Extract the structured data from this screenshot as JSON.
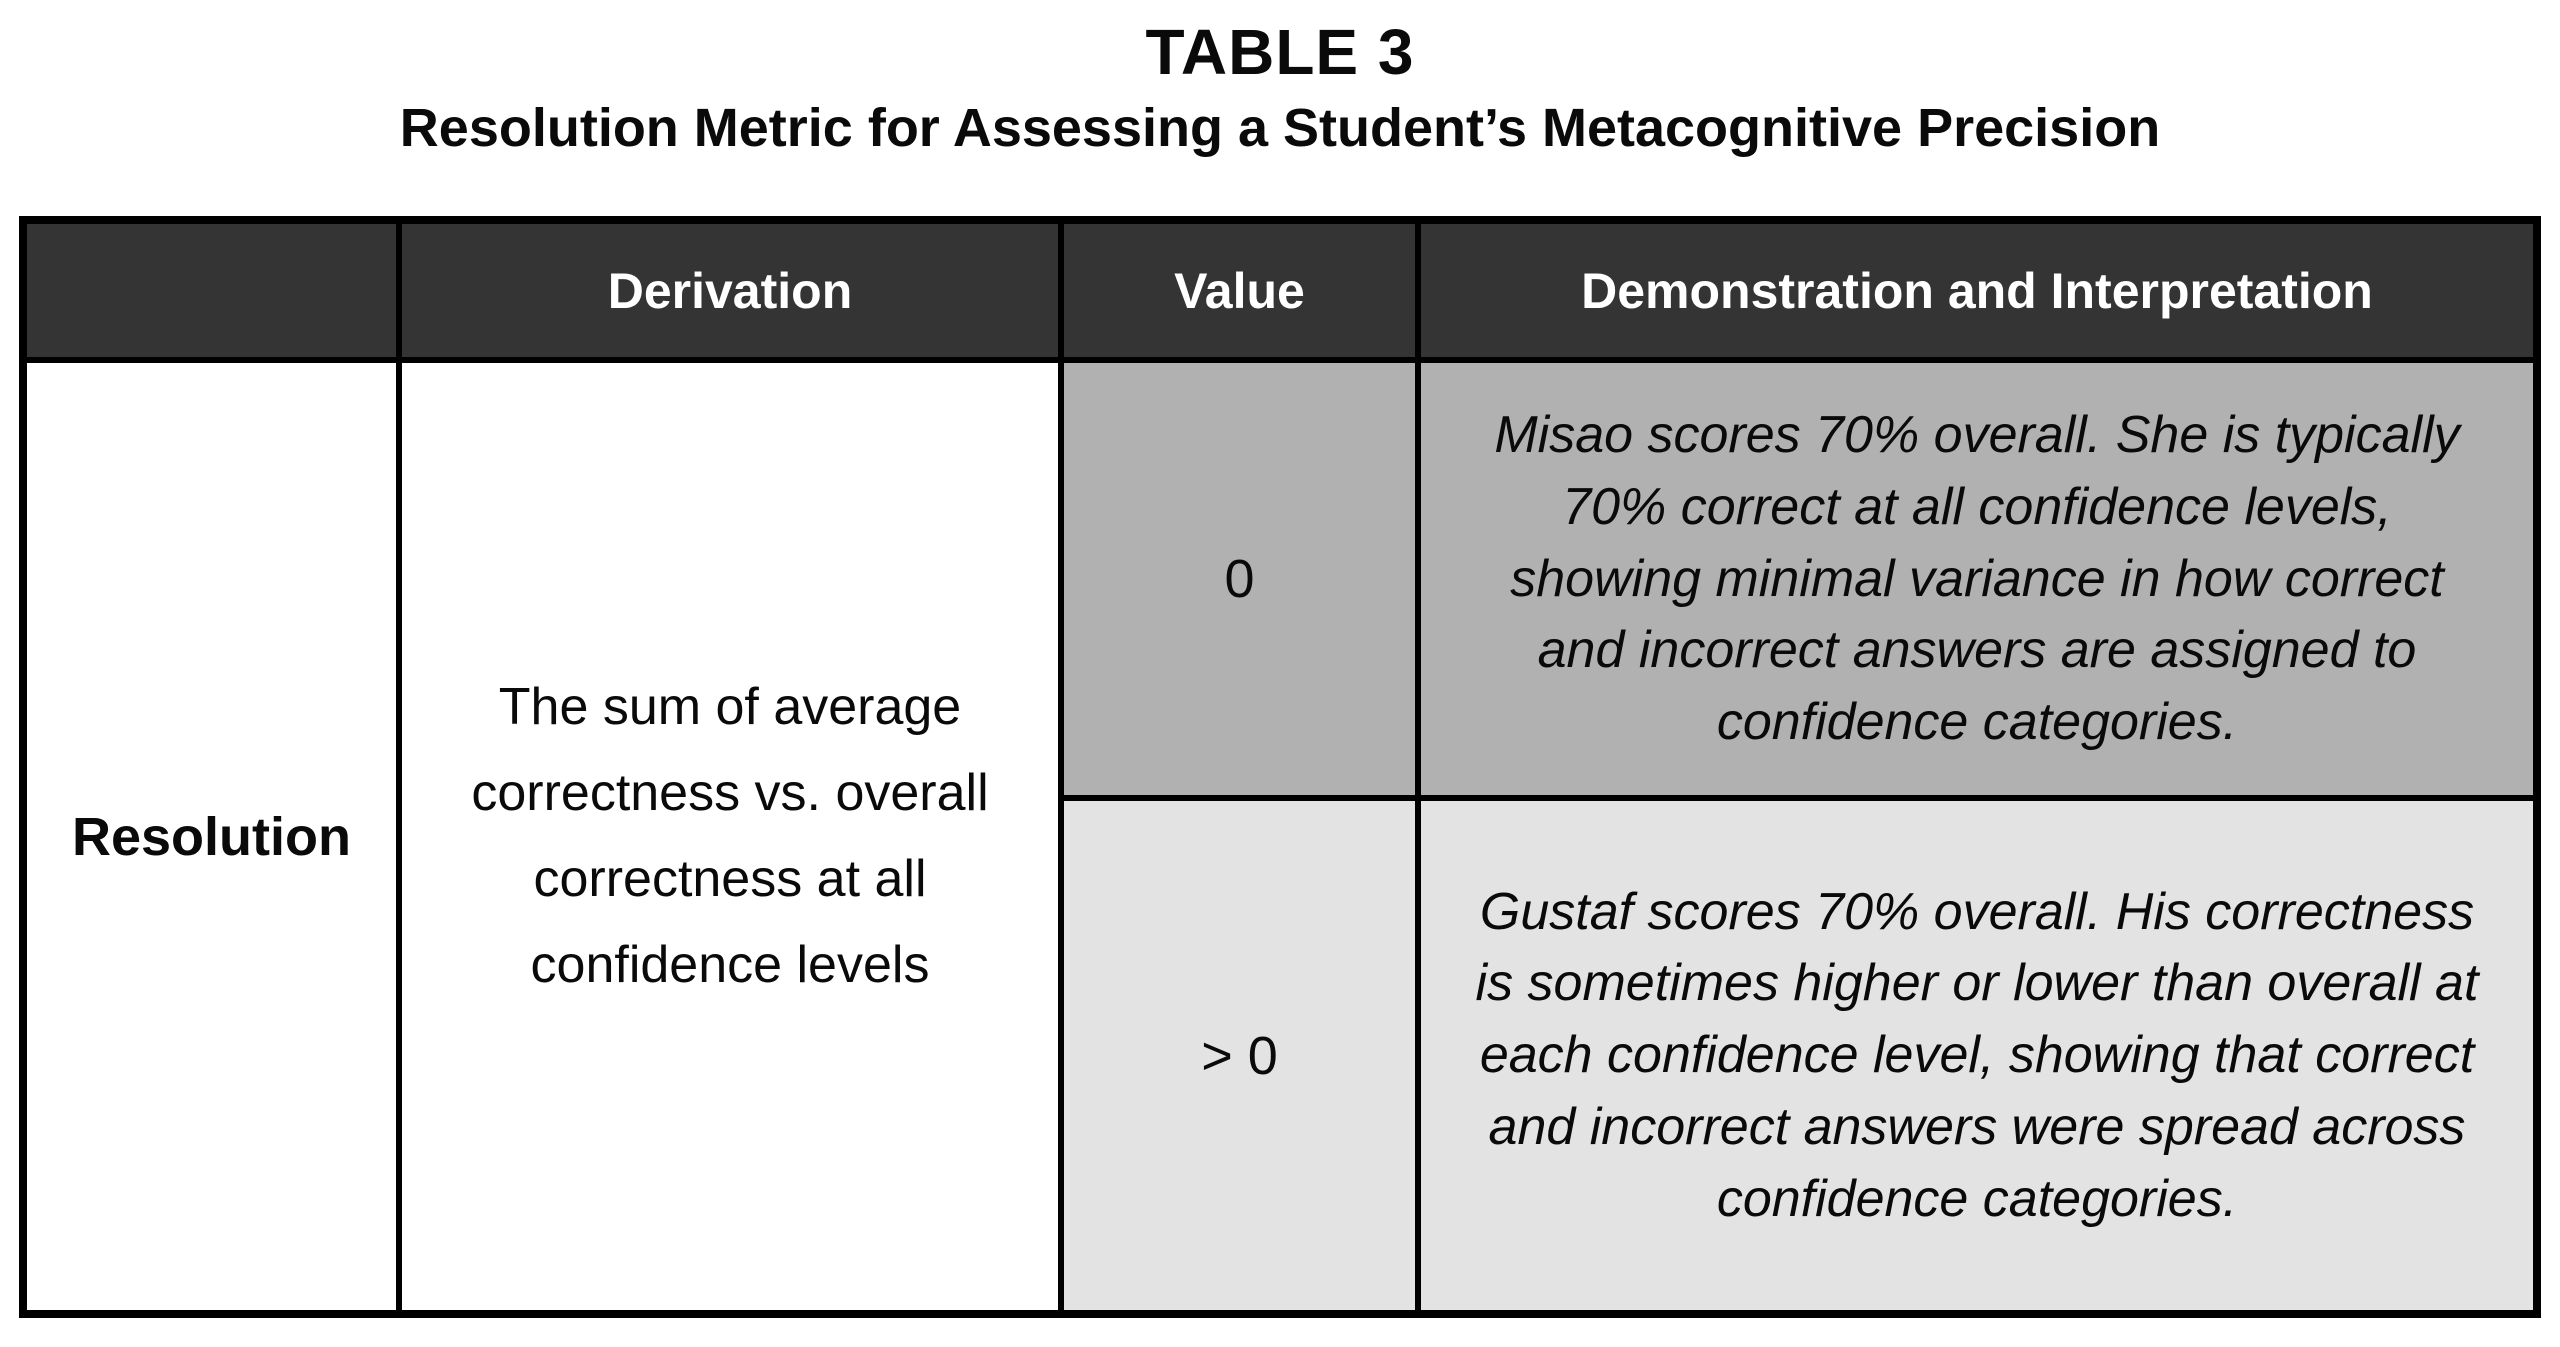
{
  "title": "TABLE 3",
  "subtitle": "Resolution Metric for Assessing a Student’s Metacognitive Precision",
  "colors": {
    "page_bg": "#ffffff",
    "text": "#0a0a0a",
    "border": "#000000",
    "header_bg": "#343434",
    "header_text": "#ffffff",
    "row_zero_bg": "#b1b1b1",
    "row_positive_bg": "#e3e3e3"
  },
  "table": {
    "headers": [
      "",
      "Derivation",
      "Value",
      "Demonstration and Interpretation"
    ],
    "metric": {
      "name": "Resolution",
      "derivation": "The sum of average correctness vs. overall correctness at all confidence levels",
      "rows": [
        {
          "value": "0",
          "interpretation": "Misao scores 70% overall. She is typically 70% correct at all confidence levels, showing minimal variance in how correct and incorrect answers are assigned to confidence categories."
        },
        {
          "value": "> 0",
          "interpretation": "Gustaf scores 70% overall. His correctness is sometimes higher or lower than overall at each confidence level, showing that correct and incorrect answers were spread across confidence categories."
        }
      ]
    }
  }
}
